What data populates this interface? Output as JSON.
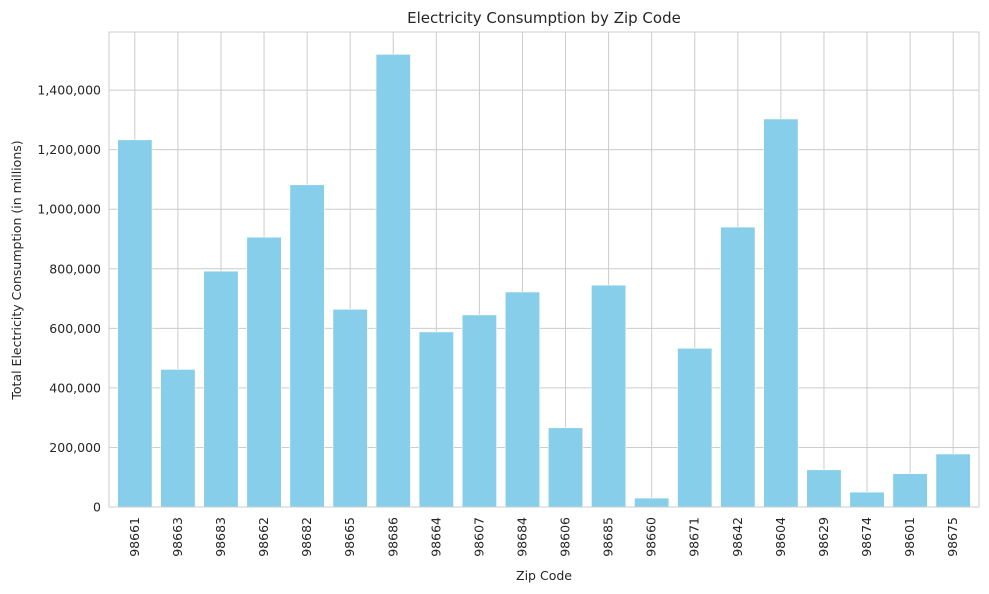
{
  "chart_data": {
    "type": "bar",
    "title": "Electricity Consumption by Zip Code",
    "xlabel": "Zip Code",
    "ylabel": "Total Electricity Consumption (in millions)",
    "categories": [
      "98661",
      "98663",
      "98683",
      "98662",
      "98682",
      "98665",
      "98686",
      "98664",
      "98607",
      "98684",
      "98606",
      "98685",
      "98660",
      "98671",
      "98642",
      "98604",
      "98629",
      "98674",
      "98601",
      "98675"
    ],
    "values": [
      1233000,
      462000,
      792000,
      906000,
      1082000,
      664000,
      1520000,
      588000,
      645000,
      722000,
      266000,
      745000,
      30000,
      533000,
      940000,
      1303000,
      125000,
      50000,
      112000,
      178000
    ],
    "ylim": [
      0,
      1595000
    ],
    "yticks": [
      0,
      200000,
      400000,
      600000,
      800000,
      1000000,
      1200000,
      1400000
    ],
    "ytick_labels": [
      "0",
      "200,000",
      "400,000",
      "600,000",
      "800,000",
      "1,000,000",
      "1,200,000",
      "1,400,000"
    ],
    "grid": true,
    "colors": {
      "bar": "#87ceeb",
      "grid": "#cccccc",
      "spine": "#cccccc",
      "text": "#262626"
    }
  }
}
